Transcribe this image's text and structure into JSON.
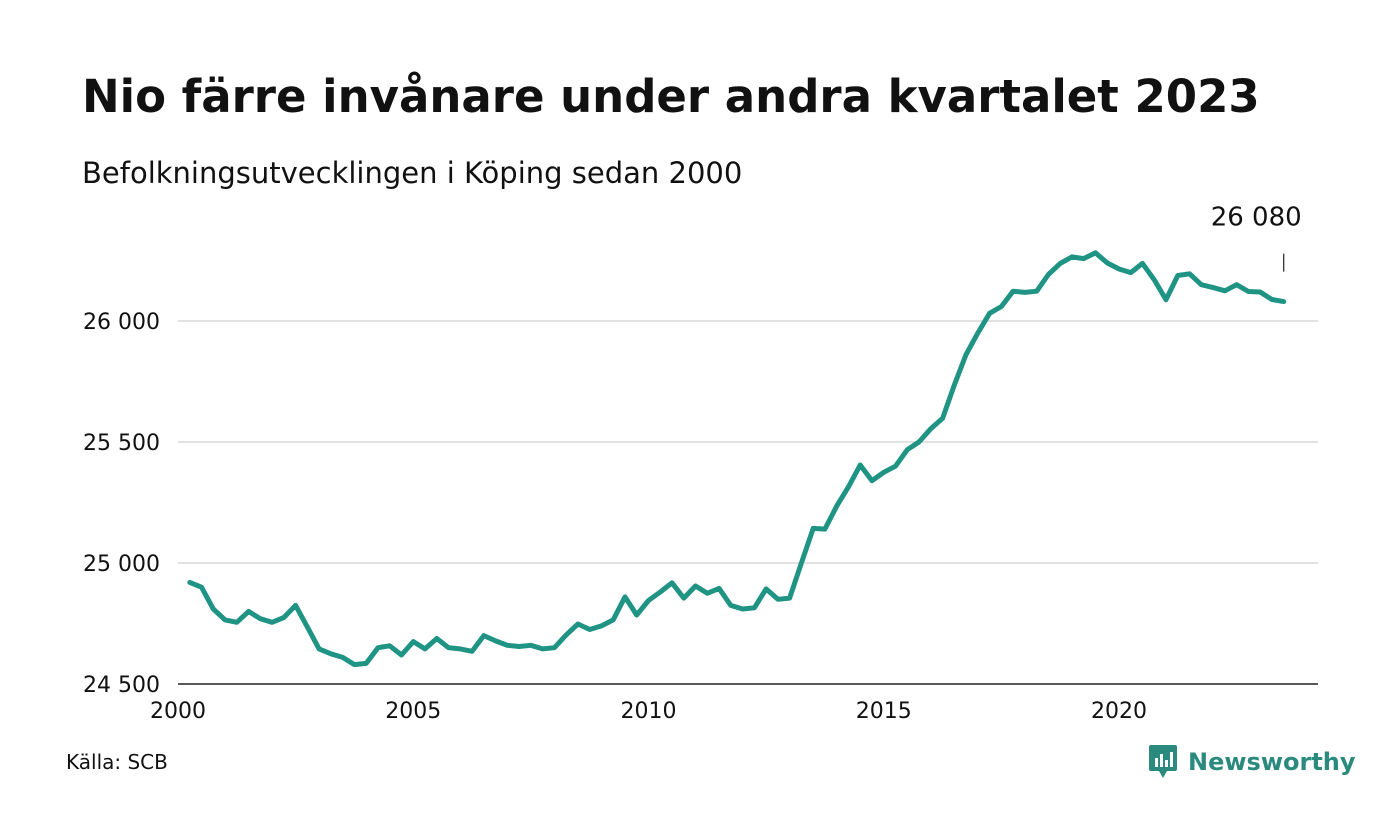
{
  "title": "Nio färre invånare under andra kvartalet 2023",
  "subtitle": "Befolkningsutvecklingen i Köping sedan 2000",
  "source": "Källa: SCB",
  "brand": {
    "name": "Newsworthy",
    "icon": "newsworthy-logo-icon",
    "color": "#2b8a7e"
  },
  "chart_data": {
    "type": "line",
    "title": "Nio färre invånare under andra kvartalet 2023",
    "subtitle": "Befolkningsutvecklingen i Köping sedan 2000",
    "xlabel": "",
    "ylabel": "",
    "xlim": [
      2000,
      2024.4
    ],
    "ylim": [
      24500,
      26350
    ],
    "yticks": [
      24500,
      25000,
      25500,
      26000
    ],
    "ytick_labels": [
      "24 500",
      "25 000",
      "25 500",
      "26 000"
    ],
    "xticks": [
      2000,
      2005,
      2010,
      2015,
      2020
    ],
    "xtick_labels": [
      "2000",
      "2005",
      "2010",
      "2015",
      "2020"
    ],
    "grid": "horizontal",
    "line_color": "#1f9484",
    "last_label": "26 080",
    "series": [
      {
        "x": [
          2000.25,
          2000.5,
          2000.75,
          2001.0,
          2001.25,
          2001.5,
          2001.75,
          2002.0,
          2002.25,
          2002.5,
          2002.75,
          2003.0,
          2003.25,
          2003.5,
          2003.75,
          2004.0,
          2004.25,
          2004.5,
          2004.75,
          2005.0,
          2005.25,
          2005.5,
          2005.75,
          2006.0,
          2006.25,
          2006.5,
          2006.75,
          2007.0,
          2007.25,
          2007.5,
          2007.75,
          2008.0,
          2008.25,
          2008.5,
          2008.75,
          2009.0,
          2009.25,
          2009.5,
          2009.75,
          2010.0,
          2010.25,
          2010.5,
          2010.75,
          2011.0,
          2011.25,
          2011.5,
          2011.75,
          2012.0,
          2012.25,
          2012.5,
          2012.75,
          2013.0,
          2013.25,
          2013.5,
          2013.75,
          2014.0,
          2014.25,
          2014.5,
          2014.75,
          2015.0,
          2015.25,
          2015.5,
          2015.75,
          2016.0,
          2016.25,
          2016.5,
          2016.75,
          2017.0,
          2017.25,
          2017.5,
          2017.75,
          2018.0,
          2018.25,
          2018.5,
          2018.75,
          2019.0,
          2019.25,
          2019.5,
          2019.75,
          2020.0,
          2020.25,
          2020.5,
          2020.75,
          2021.0,
          2021.25,
          2021.5,
          2021.75,
          2022.0,
          2022.25,
          2022.5,
          2022.75,
          2023.0,
          2023.25,
          2023.5
        ],
        "y": [
          24920,
          24900,
          24810,
          24765,
          24755,
          24800,
          24770,
          24755,
          24775,
          24825,
          24735,
          24645,
          24625,
          24610,
          24580,
          24585,
          24650,
          24658,
          24620,
          24675,
          24645,
          24688,
          24650,
          24645,
          24635,
          24700,
          24678,
          24660,
          24655,
          24660,
          24645,
          24650,
          24703,
          24748,
          24725,
          24740,
          24765,
          24860,
          24785,
          24845,
          24880,
          24918,
          24855,
          24905,
          24875,
          24895,
          24825,
          24810,
          24815,
          24893,
          24850,
          24855,
          25000,
          25143,
          25140,
          25235,
          25315,
          25405,
          25340,
          25375,
          25400,
          25468,
          25500,
          25555,
          25598,
          25735,
          25862,
          25950,
          26032,
          26060,
          26123,
          26118,
          26123,
          26192,
          26238,
          26265,
          26258,
          26282,
          26240,
          26215,
          26200,
          26238,
          26170,
          26088,
          26188,
          26195,
          26150,
          26138,
          26125,
          26150,
          26122,
          26120,
          26089,
          26080
        ]
      }
    ]
  }
}
